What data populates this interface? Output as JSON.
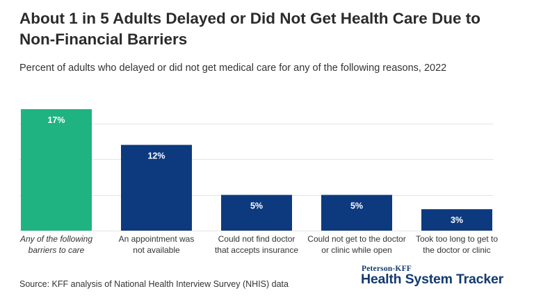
{
  "header": {
    "title": "About 1 in 5 Adults Delayed or Did Not Get Health Care Due to Non-Financial Barriers",
    "subtitle": "Percent of adults who delayed or did not get medical care for any of the following reasons, 2022"
  },
  "footer": {
    "source": "Source: KFF analysis of National Health Interview Survey (NHIS) data",
    "brand_top": "Peterson-KFF",
    "brand_main": "Health System Tracker"
  },
  "colors": {
    "highlight": "#1fb381",
    "primary": "#0d3a7e",
    "grid": "#e4e4e4",
    "label_text": "#ffffff"
  },
  "chart_data": {
    "type": "bar",
    "title": "About 1 in 5 Adults Delayed or Did Not Get Health Care Due to Non-Financial Barriers",
    "subtitle": "Percent of adults who delayed or did not get medical care for any of the following reasons, 2022",
    "categories": [
      [
        "Any of the following",
        "barriers to care"
      ],
      [
        "An appointment was",
        "not available"
      ],
      [
        "Could not find doctor",
        "that accepts insurance"
      ],
      [
        "Could not get to the doctor",
        "or clinic while open"
      ],
      [
        "Took too long to get to",
        "the doctor or clinic"
      ]
    ],
    "values": [
      17,
      12,
      5,
      5,
      3
    ],
    "data_labels": [
      "17%",
      "12%",
      "5%",
      "5%",
      "3%"
    ],
    "highlight_index": 0,
    "italic_category_index": 0,
    "ylim": [
      0,
      17.5
    ],
    "gridlines": [
      0,
      5,
      10,
      15
    ],
    "xlabel": "",
    "ylabel": "",
    "legend": "none"
  }
}
